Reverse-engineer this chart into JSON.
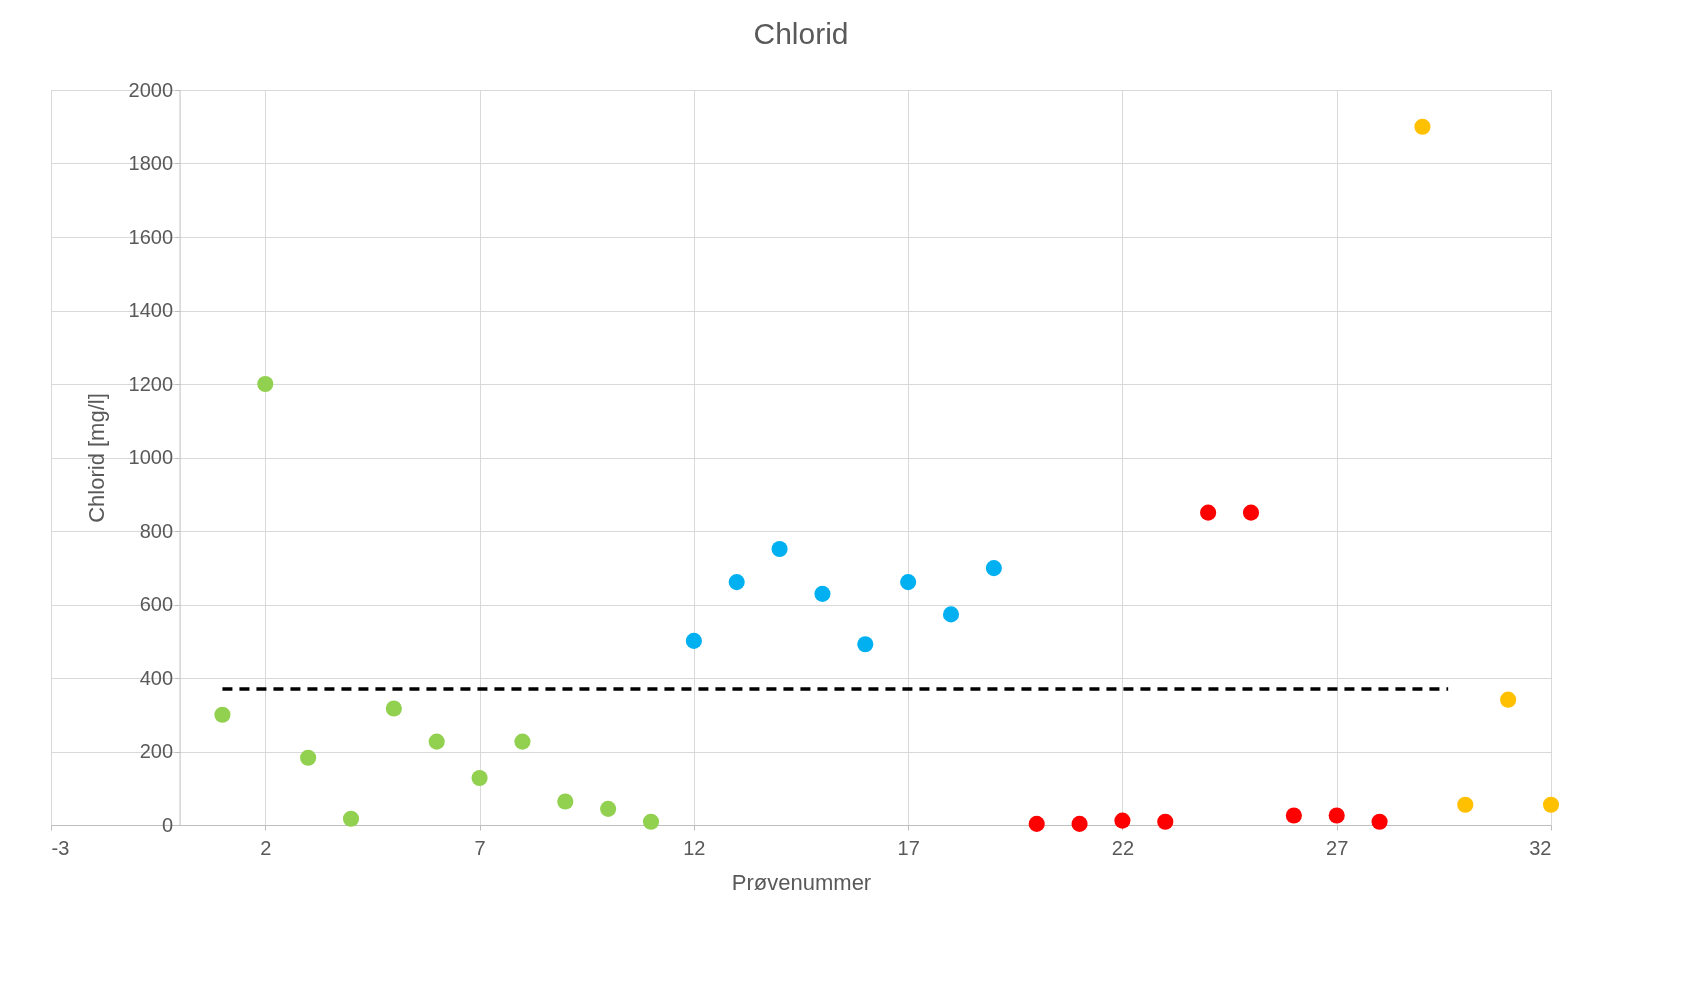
{
  "chart_data": {
    "type": "scatter",
    "title": "Chlorid",
    "xlabel": "Prøvenummer",
    "ylabel": "Chlorid [mg/l]",
    "xlim": [
      -3,
      32
    ],
    "xticks": [
      -3,
      2,
      7,
      12,
      17,
      22,
      27,
      32
    ],
    "ylim": [
      0,
      2000
    ],
    "yticks": [
      0,
      200,
      400,
      600,
      800,
      1000,
      1200,
      1400,
      1600,
      1800,
      2000
    ],
    "grid": true,
    "marker": "circle",
    "series": [
      {
        "color": "#92d050",
        "x": [
          1,
          2,
          3,
          4,
          5,
          6,
          7,
          8,
          9,
          10,
          11
        ],
        "values": [
          300,
          1200,
          183,
          17,
          317,
          227,
          128,
          227,
          64,
          44,
          9
        ]
      },
      {
        "color": "#00b0f0",
        "x": [
          12,
          13,
          14,
          15,
          16,
          17,
          18,
          19
        ],
        "values": [
          501,
          661,
          751,
          629,
          492,
          661,
          573,
          699
        ]
      },
      {
        "color": "#ff0000",
        "x": [
          20,
          21,
          22,
          23,
          24,
          25,
          26,
          27,
          28
        ],
        "values": [
          3,
          3,
          12,
          9,
          850,
          850,
          26,
          26,
          9
        ]
      },
      {
        "color": "#ffc000",
        "x": [
          29,
          30,
          31,
          32
        ],
        "values": [
          1900,
          55,
          341,
          55
        ]
      },
      {
        "type": "line",
        "color": "#000000",
        "line_style": "dashed",
        "marker": "none",
        "x": [
          1,
          29.6
        ],
        "values": [
          370,
          370
        ]
      }
    ]
  }
}
